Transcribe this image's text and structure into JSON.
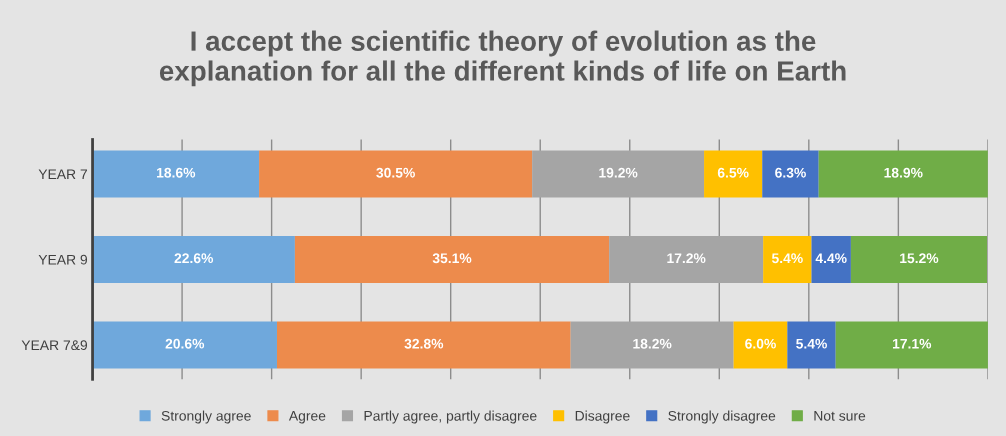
{
  "chart_data": {
    "type": "bar",
    "orientation": "horizontal",
    "stacked": true,
    "title": "I accept the scientific theory of evolution as the\nexplanation for all the different kinds of life on Earth",
    "categories": [
      "YEAR 7",
      "YEAR 9",
      "YEAR 7&9"
    ],
    "series": [
      {
        "name": "Strongly agree",
        "color": "#6fa8dc",
        "values": [
          18.6,
          22.6,
          20.6
        ],
        "value_labels": [
          "18.6%",
          "22.6%",
          "20.6%"
        ]
      },
      {
        "name": "Agree",
        "color": "#ed8b4c",
        "values": [
          30.5,
          35.1,
          32.8
        ],
        "value_labels": [
          "30.5%",
          "35.1%",
          "32.8%"
        ]
      },
      {
        "name": "Partly agree, partly disagree",
        "color": "#a5a5a5",
        "values": [
          19.2,
          17.2,
          18.2
        ],
        "value_labels": [
          "19.2%",
          "17.2%",
          "18.2%"
        ]
      },
      {
        "name": "Disagree",
        "color": "#ffc000",
        "values": [
          6.5,
          5.4,
          6.0
        ],
        "value_labels": [
          "6.5%",
          "5.4%",
          "6.0%"
        ]
      },
      {
        "name": "Strongly disagree",
        "color": "#4472c4",
        "values": [
          6.3,
          4.4,
          5.4
        ],
        "value_labels": [
          "6.3%",
          "4.4%",
          "5.4%"
        ]
      },
      {
        "name": "Not sure",
        "color": "#70ad47",
        "values": [
          18.9,
          15.2,
          17.1
        ],
        "value_labels": [
          "18.9%",
          "15.2%",
          "17.1%"
        ]
      }
    ],
    "xlim": [
      0,
      100
    ],
    "xticks": [
      {
        "value": 0,
        "label": null
      },
      {
        "value": 10,
        "label": null
      },
      {
        "value": 20,
        "label": null
      },
      {
        "value": 30,
        "label": null
      },
      {
        "value": 40,
        "label": null
      },
      {
        "value": 50,
        "label": null
      },
      {
        "value": 60,
        "label": null
      },
      {
        "value": 70,
        "label": null
      },
      {
        "value": 80,
        "label": null
      },
      {
        "value": 90,
        "label": null
      },
      {
        "value": 100,
        "label": null
      }
    ],
    "tick_labels": "y",
    "grid": "x",
    "legend": "bottom"
  }
}
